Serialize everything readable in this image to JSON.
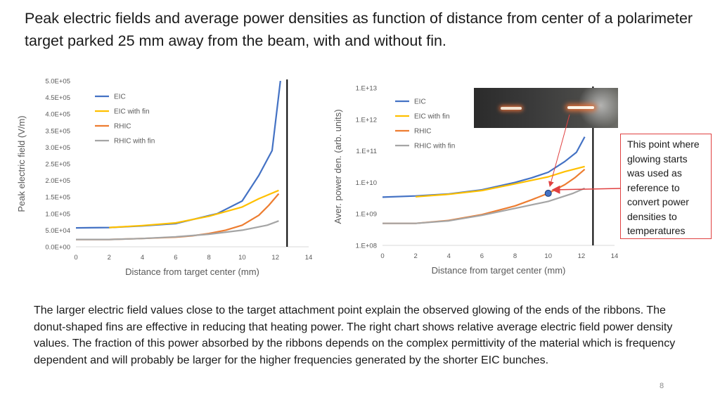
{
  "slide": {
    "title": "Peak electric fields and average power densities as function of distance from center of a polarimeter target parked 25 mm away from the beam, with and without fin.",
    "callout": "This point where glowing starts  was used as reference to convert power densities to temperatures",
    "body": "The larger electric field values close to the target attachment point explain the observed glowing of the ends of the ribbons. The donut-shaped fins are effective in reducing that heating power. The right chart shows relative average electric field power density values. The fraction of this power absorbed by the ribbons depends on the complex permittivity of the material which is frequency dependent and will probably be larger for the higher frequencies generated by  the shorter EIC bunches.",
    "page_number": "8"
  },
  "colors": {
    "EIC": "#4472c4",
    "EIC with fin": "#ffc000",
    "RHIC": "#ed7d31",
    "RHIC with fin": "#a5a5a5",
    "callout_border": "#e04040",
    "marker": "#4472c4"
  },
  "chart_data": [
    {
      "type": "line",
      "xlabel": "Distance from target center (mm)",
      "ylabel": "Peak electric field (V/m)",
      "xlim": [
        0,
        14
      ],
      "ylim": [
        0,
        500000
      ],
      "x_ticks": [
        "0",
        "2",
        "4",
        "6",
        "8",
        "10",
        "12",
        "14"
      ],
      "y_ticks": [
        "0.0E+00",
        "5.0E+04",
        "1.0E+05",
        "1.5E+05",
        "2.0E+05",
        "2.5E+05",
        "3.0E+05",
        "3.5E+05",
        "4.0E+05",
        "4.5E+05",
        "5.0E+05"
      ],
      "y_scale": "linear",
      "legend_position": "top-left",
      "vertical_line_x": 12.7,
      "series": [
        {
          "name": "EIC",
          "x": [
            0,
            2,
            4,
            6,
            7,
            8.5,
            10,
            11,
            11.8,
            12.3
          ],
          "y": [
            57000,
            58000,
            63000,
            70000,
            82000,
            100000,
            138000,
            215000,
            290000,
            500000
          ]
        },
        {
          "name": "EIC with fin",
          "x": [
            2,
            4,
            6,
            8,
            10,
            11,
            12.2
          ],
          "y": [
            58000,
            64000,
            72000,
            92000,
            120000,
            145000,
            170000
          ]
        },
        {
          "name": "RHIC",
          "x": [
            0,
            2,
            4,
            6,
            7,
            8,
            9,
            10,
            11,
            11.6,
            12.2
          ],
          "y": [
            22000,
            22000,
            25000,
            29000,
            33000,
            40000,
            50000,
            65000,
            95000,
            125000,
            160000
          ]
        },
        {
          "name": "RHIC with fin",
          "x": [
            0,
            2,
            4,
            6,
            8,
            10,
            11.5,
            12.2
          ],
          "y": [
            22000,
            22000,
            25000,
            30000,
            38000,
            50000,
            65000,
            78000
          ]
        }
      ]
    },
    {
      "type": "line",
      "xlabel": "Distance from target center (mm)",
      "ylabel": "Aver. power den. (arb. units)",
      "xlim": [
        0,
        14
      ],
      "ylim": [
        100000000,
        10000000000000
      ],
      "x_ticks": [
        "0",
        "2",
        "4",
        "6",
        "8",
        "10",
        "12",
        "14"
      ],
      "y_ticks": [
        "1.E+08",
        "1.E+09",
        "1.E+10",
        "1.E+11",
        "1.E+12",
        "1.E+13"
      ],
      "y_scale": "log",
      "legend_position": "top-left",
      "vertical_line_x": 12.7,
      "highlight_point": {
        "x": 10,
        "y": 4500000000
      },
      "series": [
        {
          "name": "EIC",
          "x": [
            0,
            2,
            4,
            6,
            8,
            9,
            10,
            11,
            11.7,
            12.2
          ],
          "y": [
            3400000000,
            3700000000,
            4300000000,
            5800000000,
            10000000000,
            14000000000,
            21000000000,
            46000000000,
            90000000000,
            280000000000
          ]
        },
        {
          "name": "EIC with fin",
          "x": [
            2,
            4,
            6,
            8,
            10,
            11,
            12.2
          ],
          "y": [
            3500000000,
            4200000000,
            5500000000,
            9000000000,
            15000000000,
            22000000000,
            32000000000
          ]
        },
        {
          "name": "RHIC",
          "x": [
            0,
            2,
            4,
            6,
            8,
            9,
            10,
            11,
            11.6,
            12.2
          ],
          "y": [
            500000000,
            500000000,
            620000000,
            950000000,
            1800000000,
            2800000000,
            4500000000,
            8500000000,
            14000000000,
            26000000000
          ]
        },
        {
          "name": "RHIC with fin",
          "x": [
            0,
            2,
            4,
            6,
            8,
            10,
            11.5,
            12.2
          ],
          "y": [
            500000000,
            500000000,
            600000000,
            900000000,
            1500000000,
            2500000000,
            4500000000,
            6500000000
          ]
        }
      ]
    }
  ]
}
